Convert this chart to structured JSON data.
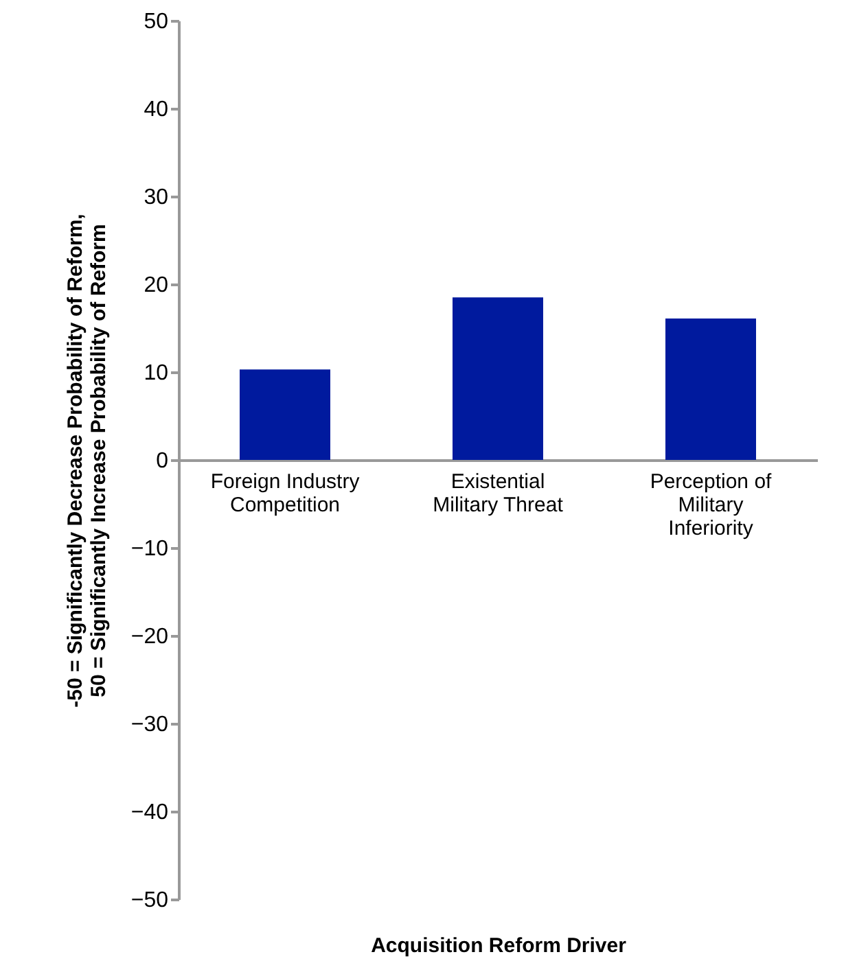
{
  "chart_data": {
    "type": "bar",
    "xlabel": "Acquisition Reform Driver",
    "ylabel": "-50 = Significantly Decrease Probability of Reform, 50 = Significantly Increase Probability of Reform",
    "categories": [
      "Foreign Industry Competition",
      "Existential Military Threat",
      "Perception of Military Inferiority"
    ],
    "values": [
      10.3,
      18.5,
      16.1
    ],
    "color": "#001a9e",
    "ylim": [
      -50,
      50
    ],
    "yticks": [
      -50,
      -40,
      -30,
      -20,
      -10,
      0,
      10,
      20,
      30,
      40,
      50
    ],
    "grid": false
  }
}
